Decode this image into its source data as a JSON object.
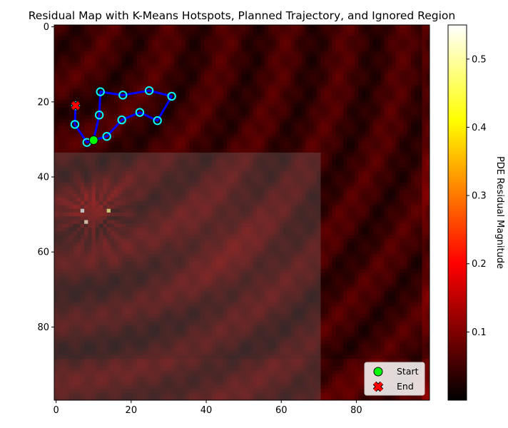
{
  "chart_data": {
    "type": "heatmap",
    "title": "Residual Map with K-Means Hotspots, Planned Trajectory, and Ignored Region",
    "grid_size": 100,
    "xlim": [
      0,
      99
    ],
    "ylim": [
      99,
      0
    ],
    "x_ticks": [
      0,
      20,
      40,
      60,
      80
    ],
    "y_ticks": [
      0,
      20,
      40,
      60,
      80
    ],
    "colormap": "hot",
    "colorbar": {
      "label": "PDE Residual Magnitude",
      "range": [
        0.0,
        0.55
      ],
      "ticks": [
        0.1,
        0.2,
        0.3,
        0.4,
        0.5
      ]
    },
    "ignored_region": {
      "x": [
        0,
        70.5
      ],
      "y": [
        33.5,
        99
      ]
    },
    "hotspots": [
      {
        "x": 5.2,
        "y": 21.0
      },
      {
        "x": 5.0,
        "y": 26.0
      },
      {
        "x": 8.2,
        "y": 30.8
      },
      {
        "x": 13.5,
        "y": 29.2
      },
      {
        "x": 17.5,
        "y": 24.8
      },
      {
        "x": 22.3,
        "y": 22.8
      },
      {
        "x": 27.0,
        "y": 25.0
      },
      {
        "x": 30.8,
        "y": 18.5
      },
      {
        "x": 24.8,
        "y": 17.0
      },
      {
        "x": 17.8,
        "y": 18.2
      },
      {
        "x": 11.8,
        "y": 17.3
      },
      {
        "x": 11.5,
        "y": 23.5
      }
    ],
    "trajectory": [
      {
        "x": 10.0,
        "y": 30.2
      },
      {
        "x": 13.5,
        "y": 29.2
      },
      {
        "x": 17.5,
        "y": 24.8
      },
      {
        "x": 22.3,
        "y": 22.8
      },
      {
        "x": 27.0,
        "y": 25.0
      },
      {
        "x": 30.8,
        "y": 18.5
      },
      {
        "x": 24.8,
        "y": 17.0
      },
      {
        "x": 17.8,
        "y": 18.2
      },
      {
        "x": 11.8,
        "y": 17.3
      },
      {
        "x": 11.5,
        "y": 23.5
      },
      {
        "x": 10.0,
        "y": 30.2
      },
      {
        "x": 8.2,
        "y": 30.8
      },
      {
        "x": 5.0,
        "y": 26.0
      },
      {
        "x": 5.2,
        "y": 21.0
      }
    ],
    "start": {
      "x": 10.0,
      "y": 30.2,
      "label": "Start"
    },
    "end": {
      "x": 5.2,
      "y": 21.0,
      "label": "End"
    },
    "legend": {
      "position": "lower-right",
      "entries": [
        "Start",
        "End"
      ]
    },
    "colors": {
      "trajectory": "#0000ff",
      "hotspot_edge": "#00ffff",
      "start_marker": "#00ff00",
      "end_marker": "#ff0000",
      "ignored_overlay": "#808080"
    }
  }
}
